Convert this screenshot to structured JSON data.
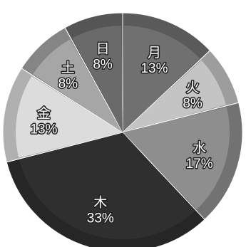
{
  "chart_data": {
    "type": "pie",
    "title": "",
    "slices": [
      {
        "label": "月",
        "value": 13,
        "value_label": "13%",
        "color": "#707070"
      },
      {
        "label": "火",
        "value": 8,
        "value_label": "8%",
        "color": "#c4c4c4"
      },
      {
        "label": "水",
        "value": 17,
        "value_label": "17%",
        "color": "#8e8e8e"
      },
      {
        "label": "木",
        "value": 33,
        "value_label": "33%",
        "color": "#2f2f2f"
      },
      {
        "label": "金",
        "value": 13,
        "value_label": "13%",
        "color": "#dcdcdc"
      },
      {
        "label": "土",
        "value": 8,
        "value_label": "8%",
        "color": "#a6a6a6"
      },
      {
        "label": "日",
        "value": 8,
        "value_label": "8%",
        "color": "#6a6a6a"
      }
    ],
    "start": "12 o'clock",
    "direction": "clockwise",
    "legend": "none"
  }
}
